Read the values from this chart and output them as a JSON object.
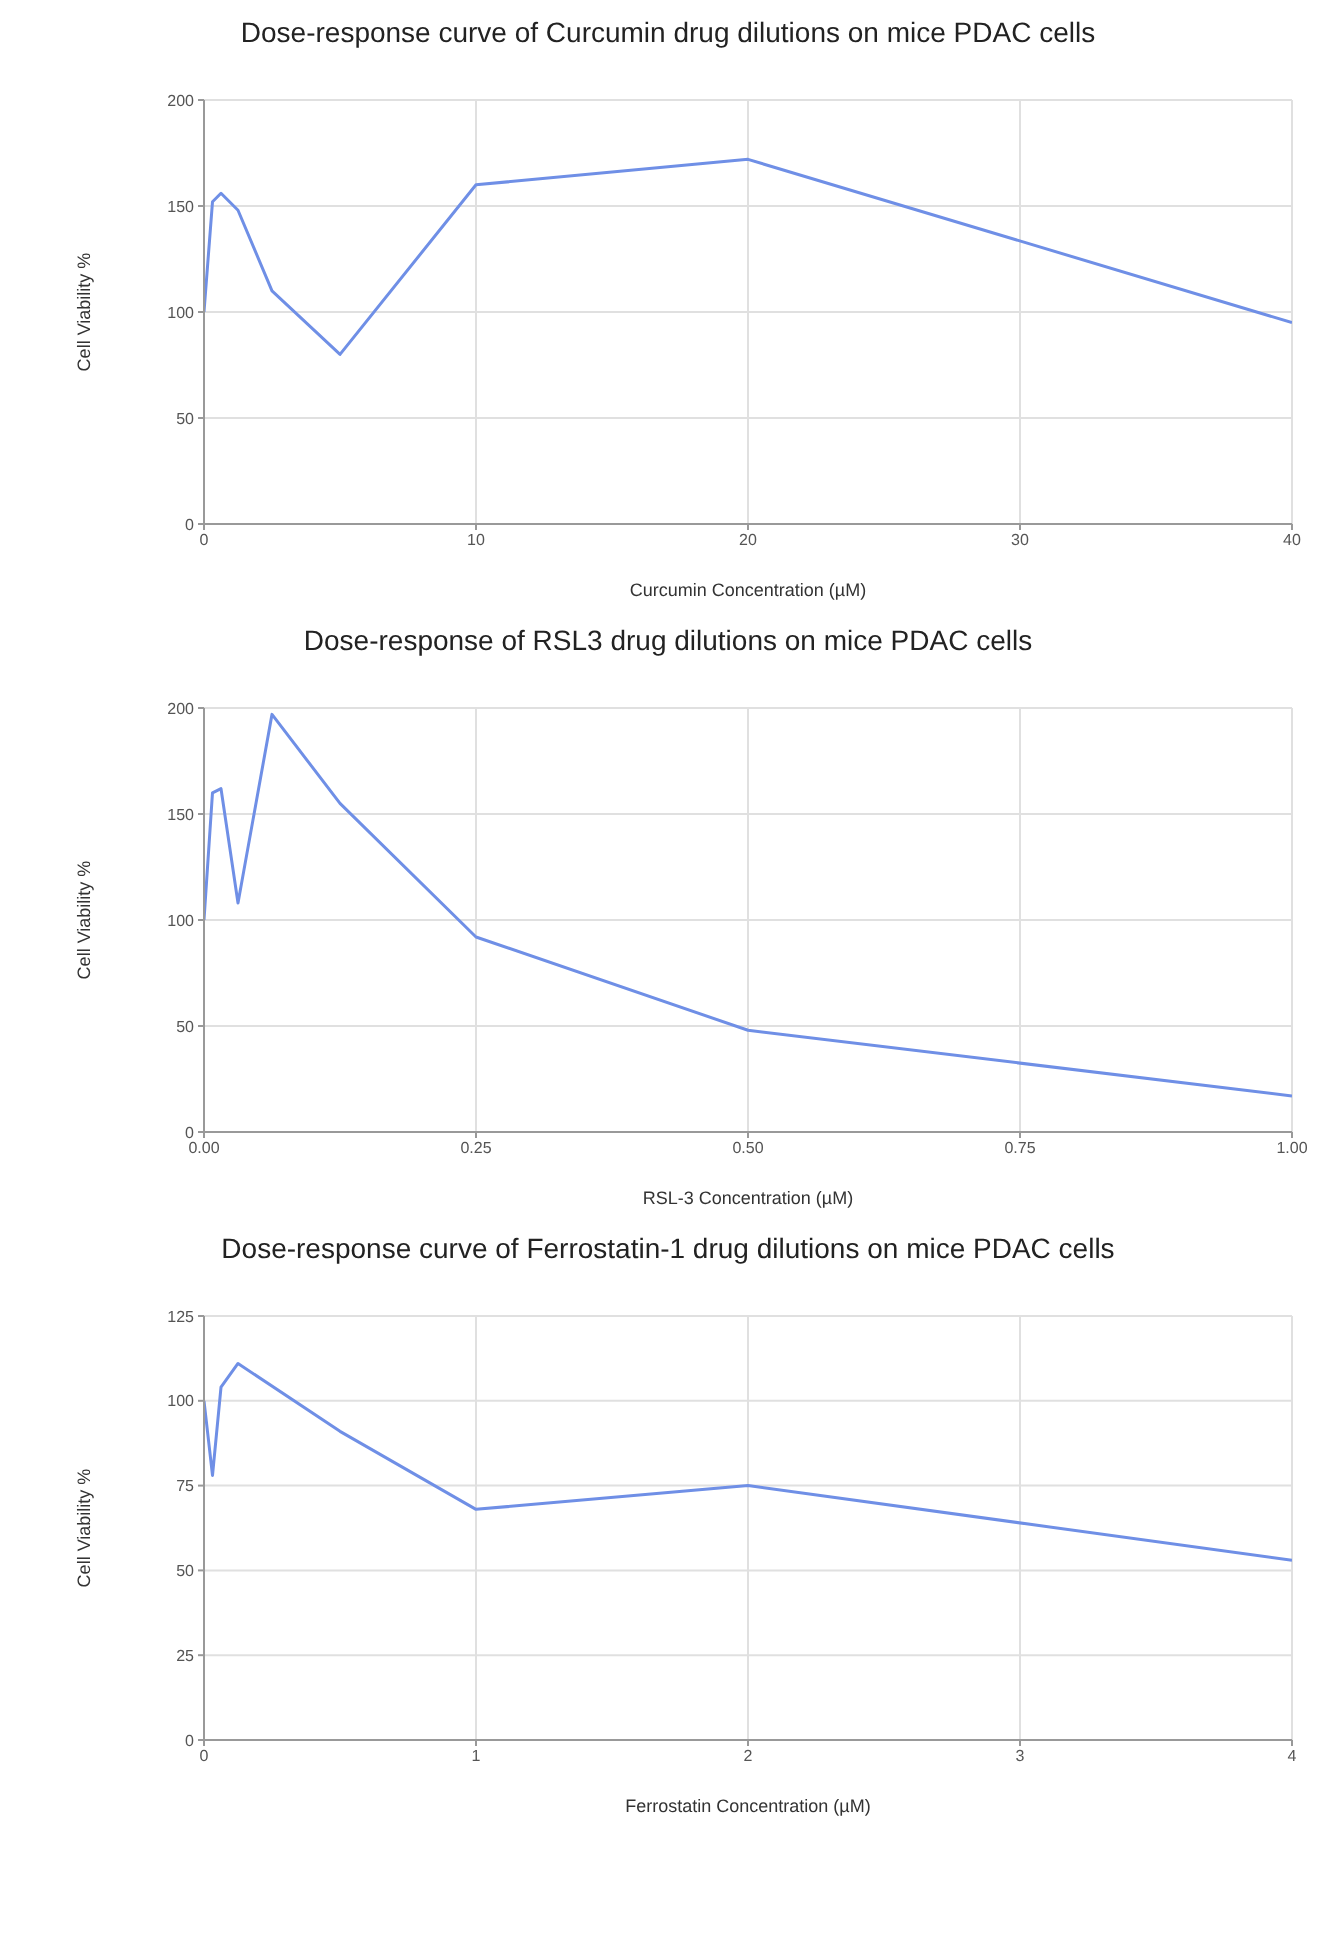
{
  "chart_data": [
    {
      "type": "line",
      "title": "Dose-response curve of Curcumin drug dilutions on mice PDAC cells",
      "xlabel": "Curcumin Concentration (µM)",
      "ylabel": "Cell Viability %",
      "x": [
        0,
        0.3125,
        0.625,
        1.25,
        2.5,
        5,
        10,
        20,
        40
      ],
      "series": [
        {
          "color": "#6f8fe6",
          "values": [
            100,
            152,
            156,
            148,
            110,
            80,
            160,
            172,
            95
          ]
        }
      ],
      "xlim": [
        0,
        40
      ],
      "xticks": [
        0,
        10,
        20,
        30,
        40
      ],
      "ylim": [
        0,
        200
      ],
      "yticks": [
        0,
        50,
        100,
        150,
        200
      ],
      "grid": true,
      "legend": false,
      "marker": "none",
      "line_style": "solid"
    },
    {
      "type": "line",
      "title": "Dose-response of RSL3 drug dilutions on mice PDAC cells",
      "xlabel": "RSL-3 Concentration (µM)",
      "ylabel": "Cell Viability %",
      "x": [
        0,
        0.0078,
        0.0156,
        0.03125,
        0.0625,
        0.125,
        0.25,
        0.5,
        1
      ],
      "series": [
        {
          "color": "#6f8fe6",
          "values": [
            100,
            160,
            162,
            108,
            197,
            155,
            92,
            48,
            17
          ]
        }
      ],
      "xlim": [
        0,
        1
      ],
      "xticks": [
        {
          "value": 0,
          "label": "0.00"
        },
        {
          "value": 0.25,
          "label": "0.25"
        },
        {
          "value": 0.5,
          "label": "0.50"
        },
        {
          "value": 0.75,
          "label": "0.75"
        },
        {
          "value": 1,
          "label": "1.00"
        }
      ],
      "ylim": [
        0,
        200
      ],
      "yticks": [
        0,
        50,
        100,
        150,
        200
      ],
      "grid": true,
      "legend": false,
      "marker": "none",
      "line_style": "solid"
    },
    {
      "type": "line",
      "title": "Dose-response curve of Ferrostatin-1 drug dilutions on mice PDAC cells",
      "xlabel": "Ferrostatin Concentration (µM)",
      "ylabel": "Cell Viability %",
      "x": [
        0,
        0.03125,
        0.0625,
        0.125,
        0.5,
        1,
        2,
        4
      ],
      "series": [
        {
          "color": "#6f8fe6",
          "values": [
            100,
            78,
            104,
            111,
            91,
            68,
            75,
            53
          ]
        }
      ],
      "xlim": [
        0,
        4
      ],
      "xticks": [
        0,
        1,
        2,
        3,
        4
      ],
      "ylim": [
        0,
        125
      ],
      "yticks": [
        0,
        25,
        50,
        75,
        100,
        125
      ],
      "grid": true,
      "legend": false,
      "marker": "none",
      "line_style": "solid"
    }
  ]
}
